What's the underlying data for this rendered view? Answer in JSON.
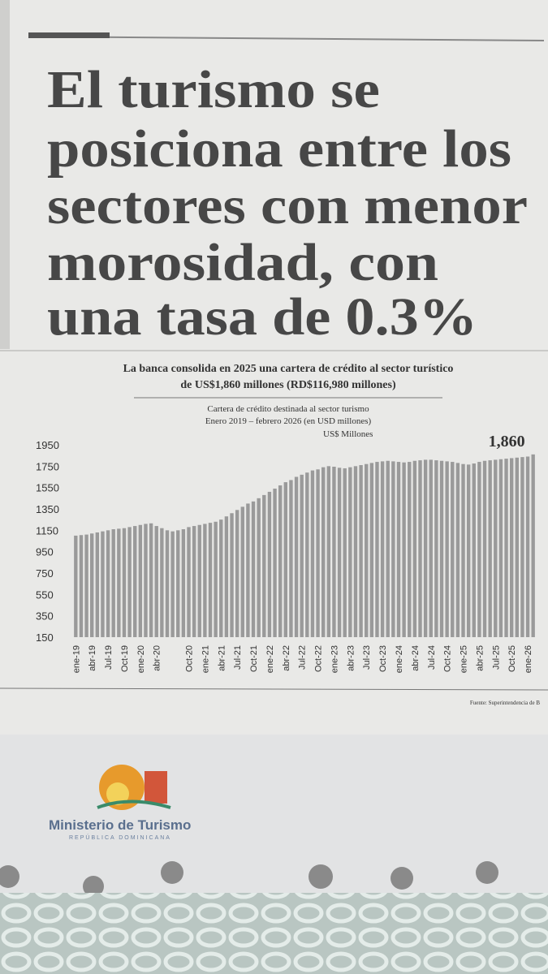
{
  "headline": {
    "lines": [
      "El turismo se",
      "posiciona entre los",
      "sectores con menor",
      "morosidad, con",
      "una tasa de 0.3%"
    ]
  },
  "chart_data": {
    "type": "bar",
    "title": [
      "La banca consolida en 2025 una cartera de crédito al sector turístico",
      "de US$1,860 millones (RD$116,980 millones)"
    ],
    "subtitle": [
      "Cartera de crédito destinada al sector turismo",
      "Enero 2019 – febrero 2026 (en USD millones)"
    ],
    "y_label": "US$ Millones",
    "categories": [
      "ene-19",
      null,
      null,
      "abr-19",
      null,
      null,
      "Jul-19",
      null,
      null,
      "Oct-19",
      null,
      null,
      "ene-20",
      null,
      null,
      "abr-20",
      null,
      null,
      null,
      null,
      null,
      "Oct-20",
      null,
      null,
      "ene-21",
      null,
      null,
      "abr-21",
      null,
      null,
      "Jul-21",
      null,
      null,
      "Oct-21",
      null,
      null,
      "ene-22",
      null,
      null,
      "abr-22",
      null,
      null,
      "Jul-22",
      null,
      null,
      "Oct-22",
      null,
      null,
      "ene-23",
      null,
      null,
      "abr-23",
      null,
      null,
      "Jul-23",
      null,
      null,
      "Oct-23",
      null,
      null,
      "ene-24",
      null,
      null,
      "abr-24",
      null,
      null,
      "Jul-24",
      null,
      null,
      "Oct-24",
      null,
      null,
      "ene-25",
      null,
      null,
      "abr-25",
      null,
      null,
      "Jul-25",
      null,
      null,
      "Oct-25",
      null,
      null,
      "ene-26",
      null
    ],
    "values": [
      1100,
      1105,
      1110,
      1120,
      1130,
      1140,
      1150,
      1160,
      1165,
      1170,
      1180,
      1190,
      1200,
      1210,
      1215,
      1190,
      1170,
      1150,
      1140,
      1150,
      1160,
      1180,
      1190,
      1200,
      1210,
      1220,
      1230,
      1250,
      1280,
      1310,
      1340,
      1370,
      1400,
      1420,
      1450,
      1480,
      1510,
      1540,
      1570,
      1600,
      1620,
      1650,
      1670,
      1690,
      1710,
      1720,
      1740,
      1750,
      1745,
      1735,
      1730,
      1740,
      1750,
      1760,
      1770,
      1780,
      1790,
      1795,
      1800,
      1795,
      1790,
      1785,
      1790,
      1800,
      1805,
      1810,
      1810,
      1805,
      1800,
      1795,
      1790,
      1780,
      1770,
      1765,
      1775,
      1790,
      1800,
      1805,
      1810,
      1815,
      1820,
      1825,
      1830,
      1835,
      1840,
      1860
    ],
    "value_labels": [
      null,
      null,
      null,
      null,
      null,
      null,
      null,
      null,
      null,
      null,
      null,
      null,
      null,
      null,
      null,
      null,
      null,
      null,
      null,
      null,
      null,
      null,
      null,
      null,
      null,
      null,
      null,
      null,
      null,
      null,
      null,
      null,
      null,
      null,
      null,
      null,
      null,
      null,
      null,
      null,
      null,
      null,
      null,
      null,
      null,
      null,
      null,
      null,
      null,
      null,
      null,
      null,
      null,
      null,
      null,
      null,
      null,
      null,
      null,
      null,
      null,
      null,
      null,
      null,
      null,
      null,
      null,
      null,
      null,
      null,
      null,
      null,
      null,
      null,
      null,
      null,
      null,
      null,
      null,
      null,
      null,
      null,
      null,
      null,
      null,
      "1,860"
    ],
    "color": "#9a9a9a",
    "ylim": [
      150,
      1950
    ],
    "yticks": [
      150,
      350,
      550,
      750,
      950,
      1150,
      1350,
      1550,
      1750,
      1950
    ],
    "grid": false,
    "source": "Fuente: Superintendencia de B"
  },
  "ad": {
    "brand": "Ministerio de Turismo",
    "country": "REPÚBLICA DOMINICANA"
  }
}
